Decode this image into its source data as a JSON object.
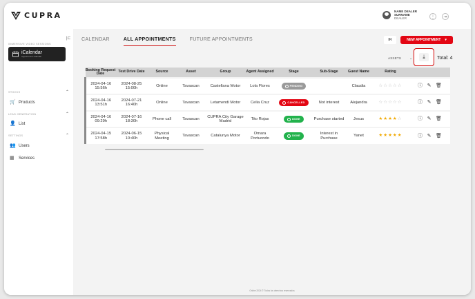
{
  "header": {
    "logo_text": "CUPRA",
    "user_name": "NAME DEALER",
    "user_surname": "SURNAME",
    "user_role": "DEALER"
  },
  "sidebar": {
    "collapse_label": "|⊏",
    "section_video": "IMMERSIVE VIDEO SESSIONS",
    "icalendar_title": "iCalendar",
    "icalendar_sub": "Appointment calendar",
    "section_stocks": "STOCKS",
    "products_label": "Products",
    "section_leads": "LEAD GENERATION",
    "list_label": "List",
    "section_settings": "SETTINGS",
    "users_label": "Users",
    "services_label": "Services"
  },
  "tabs": [
    "CALENDAR",
    "ALL APPOINTMENTS",
    "FUTURE APPOINTMENTS"
  ],
  "toolbar": {
    "ir_label": "IR",
    "new_appointment_label": "NEW APPOINTMENT",
    "assets_label": "ASSETS",
    "total_label": "Total: 4"
  },
  "table": {
    "headers": [
      "Booking Request Date",
      "Test Drive Date",
      "Source",
      "Asset",
      "Group",
      "Agent Assigned",
      "Stage",
      "Sub-Stage",
      "Guest Name",
      "Rating",
      ""
    ],
    "rows": [
      {
        "booking": "2024-04-16 15:56h",
        "test_drive": "2024-08-25 15:00h",
        "source": "Online",
        "asset": "Tavascan",
        "group": "Castellana Motor",
        "agent": "Lola Flores",
        "stage": "PENDING",
        "substage": "",
        "guest": "Claudia",
        "rating": 0
      },
      {
        "booking": "2024-04-16 13:51h",
        "test_drive": "2024-07-21 16:40h",
        "source": "Online",
        "asset": "Tavascan",
        "group": "Letamendi Motor",
        "agent": "Celia Cruz",
        "stage": "CANCELLED",
        "substage": "Not interest",
        "guest": "Alejandra",
        "rating": 0
      },
      {
        "booking": "2024-04-16 09:29h",
        "test_drive": "2024-07-16 18:30h",
        "source": "Phone call",
        "asset": "Tavascan",
        "group": "CUPRA City Garage Madrid",
        "agent": "Tito Rojas",
        "stage": "DONE",
        "substage": "Purchase started",
        "guest": "Jesus",
        "rating": 4
      },
      {
        "booking": "2024-04-15 17:58h",
        "test_drive": "2024-06-15 10:40h",
        "source": "Physical Meeting",
        "asset": "Tavascan",
        "group": "Catalunya Motor",
        "agent": "Omara Portuondo",
        "stage": "DONE",
        "substage": "Interest in Purchase",
        "guest": "Yanet",
        "rating": 5
      }
    ]
  },
  "stage_colors": {
    "PENDING": "#9a9a9a",
    "CANCELLED": "#e30613",
    "DONE": "#22b24c"
  },
  "footer": "Online 2024 © Todos los derechos reservados"
}
